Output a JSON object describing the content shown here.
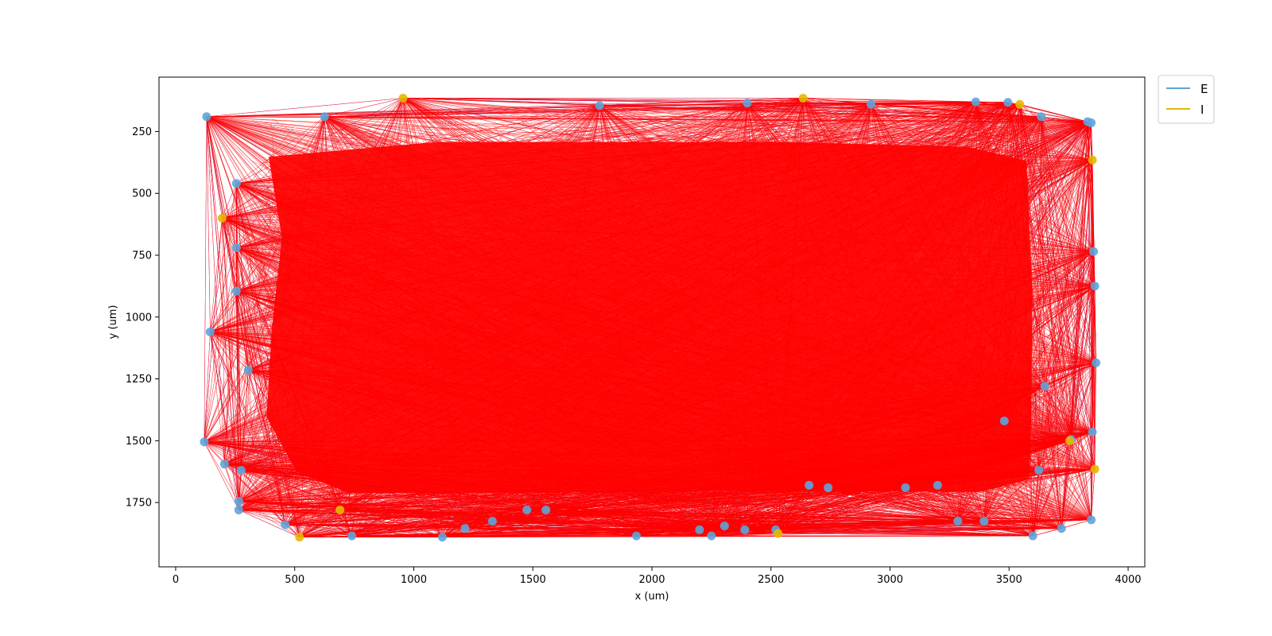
{
  "chart_data": {
    "type": "scatter",
    "title": "",
    "xlabel": "x (um)",
    "ylabel": "y (um)",
    "xlim": [
      -70,
      4070
    ],
    "ylim": [
      2010,
      30
    ],
    "y_inverted": true,
    "grid": false,
    "legend_position": "outside-top-right",
    "x_ticks": [
      0,
      500,
      1000,
      1500,
      2000,
      2500,
      3000,
      3500,
      4000
    ],
    "x_tick_labels": [
      "0",
      "500",
      "1000",
      "1500",
      "2000",
      "2500",
      "3000",
      "3500",
      "4000"
    ],
    "y_ticks": [
      250,
      500,
      750,
      1000,
      1250,
      1500,
      1750
    ],
    "y_tick_labels": [
      "250",
      "500",
      "750",
      "1000",
      "1250",
      "1500",
      "1750"
    ],
    "legend": [
      {
        "label": "E",
        "color": "#5da5da"
      },
      {
        "label": "I",
        "color": "#e6b800"
      }
    ],
    "edge_colors": {
      "excitatory": "#0000ff",
      "inhibitory": "#ff0000"
    },
    "series": [
      {
        "name": "E",
        "color": "#5da5da",
        "x": [
          130,
          625,
          1780,
          2400,
          2920,
          3360,
          3495,
          3635,
          3830,
          3845,
          255,
          255,
          255,
          145,
          305,
          120,
          205,
          275,
          265,
          265,
          460,
          740,
          1120,
          1215,
          1330,
          1475,
          1555,
          1935,
          2200,
          2250,
          2305,
          2390,
          2520,
          2660,
          2740,
          3065,
          3200,
          3285,
          3395,
          3600,
          3720,
          3845,
          3850,
          3865,
          3860,
          3855,
          3625,
          3480,
          3760,
          3650
        ],
        "y": [
          190,
          190,
          145,
          135,
          140,
          130,
          132,
          190,
          210,
          215,
          460,
          720,
          895,
          1060,
          1215,
          1505,
          1595,
          1620,
          1745,
          1780,
          1840,
          1885,
          1890,
          1855,
          1825,
          1780,
          1780,
          1885,
          1860,
          1885,
          1845,
          1860,
          1860,
          1680,
          1690,
          1690,
          1680,
          1825,
          1825,
          1885,
          1855,
          1820,
          1465,
          1185,
          875,
          735,
          1620,
          1420,
          1495,
          1280
        ]
      },
      {
        "name": "I",
        "color": "#e6b800",
        "x": [
          955,
          2635,
          3545,
          3850,
          195,
          690,
          520,
          2530,
          3755,
          3860
        ],
        "y": [
          115,
          115,
          140,
          365,
          600,
          1780,
          1890,
          1875,
          1500,
          1615
        ]
      }
    ]
  }
}
